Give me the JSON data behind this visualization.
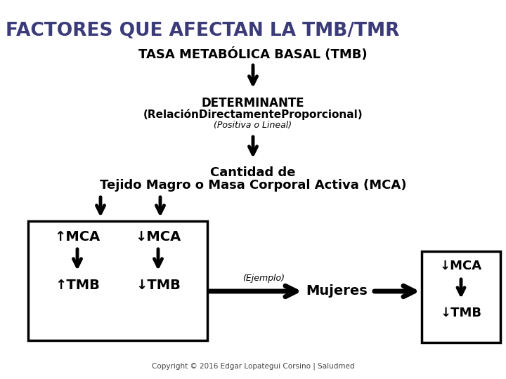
{
  "title": "FACTORES QUE AFECTAN LA TMB/TMR",
  "title_color": "#3B3B7A",
  "subtitle": "TASA METABÓLICA BASAL (TMB)",
  "det_line1": "DETERMINANTE",
  "det_line2": "(RelaciónDirectamenteProporcional)",
  "det_line3": "(Positiva o Lineal)",
  "cantidad_line1": "Cantidad de",
  "cantidad_line2": "Tejido Magro o Masa Corporal Activa (MCA)",
  "up_mca": "↑MCA",
  "down_mca": "↓MCA",
  "up_tmb": "↑TMB",
  "down_tmb": "↓TMB",
  "ejemplo": "(Ejemplo)",
  "mujeres": "Mujeres",
  "result_mca": "↓MCA",
  "result_tmb": "↓TMB",
  "copyright": "Copyright © 2016 Edgar Lopategui Corsino | Saludmed",
  "bg_color": "#ffffff",
  "text_color": "#000000"
}
